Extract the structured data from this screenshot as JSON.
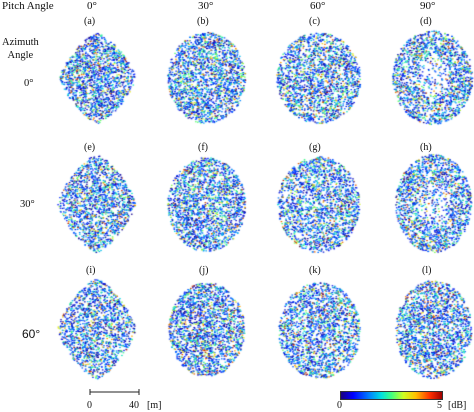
{
  "header": {
    "pitch_label": "Pitch Angle",
    "azimuth_label": "Azimuth\nAngle",
    "columns": [
      "0°",
      "30°",
      "60°",
      "90°"
    ]
  },
  "rows": [
    {
      "label": "0°",
      "subplots": [
        "(a)",
        "(b)",
        "(c)",
        "(d)"
      ]
    },
    {
      "label": "30°",
      "subplots": [
        "(e)",
        "(f)",
        "(g)",
        "(h)"
      ]
    },
    {
      "label": "60°",
      "subplots": [
        "(i)",
        "(j)",
        "(k)",
        "(l)"
      ]
    }
  ],
  "scale_bar": {
    "start": "0",
    "end": "40",
    "unit": "[m]"
  },
  "colorbar": {
    "min": "0",
    "max": "5",
    "unit": "[dB]"
  },
  "colors": {
    "low": "#1a0080",
    "mid": "#40ff80",
    "high": "#a00000"
  }
}
